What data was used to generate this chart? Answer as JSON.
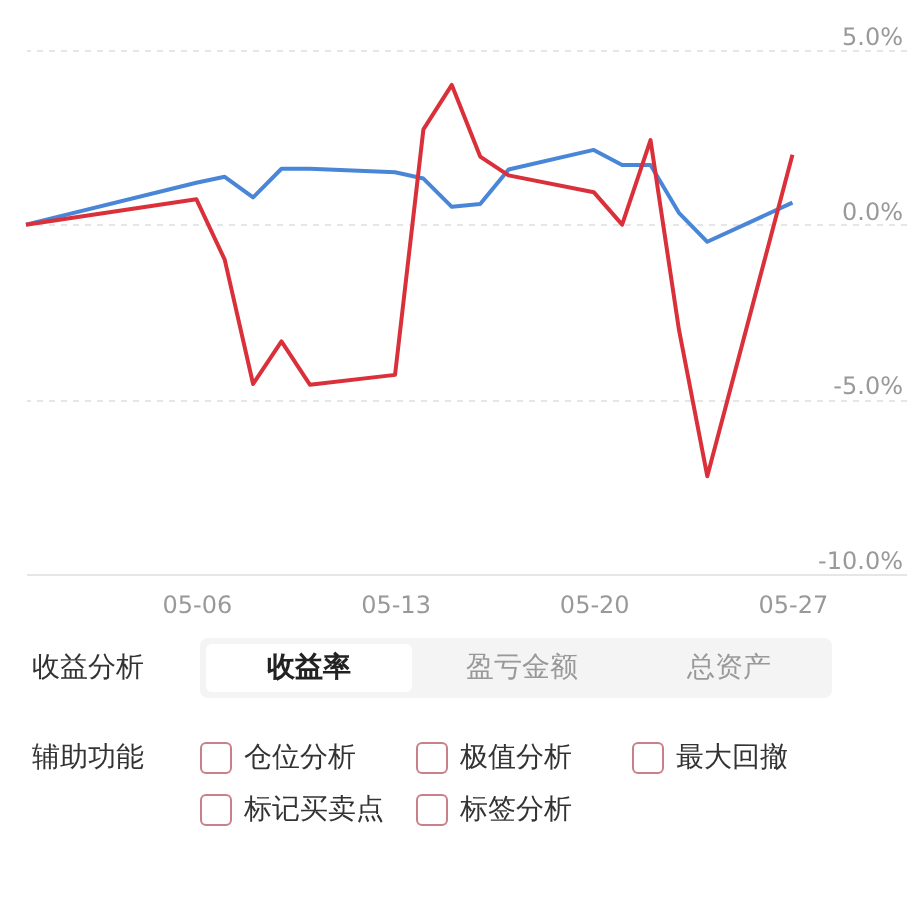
{
  "chart_data": [
    {
      "type": "line",
      "x": [
        "--04-30",
        "--05-06",
        "--05-07",
        "--05-08",
        "--05-09",
        "--05-10",
        "--05-13",
        "--05-14",
        "--05-15",
        "--05-16",
        "--05-17",
        "--05-20",
        "--05-21",
        "--05-22",
        "--05-23",
        "--05-24",
        "--05-27"
      ],
      "series": [
        {
          "color": "#4a86d8",
          "values": [
            0,
            1.2,
            1.37,
            0.78,
            1.6,
            1.6,
            1.5,
            1.32,
            0.51,
            0.59,
            1.58,
            2.14,
            1.71,
            1.71,
            0.34,
            -0.49,
            0.63
          ]
        },
        {
          "color": "#d9303a",
          "values": [
            0,
            0.73,
            -1.0,
            -4.56,
            -3.34,
            -4.58,
            -4.3,
            2.73,
            4.0,
            1.95,
            1.41,
            0.93,
            0.0,
            2.42,
            -3.0,
            -7.2,
            2.0
          ]
        }
      ],
      "xlim": [
        "--04-30",
        "--05-31"
      ],
      "xticks": [
        {
          "value": "--05-06",
          "label": "05-06"
        },
        {
          "value": "--05-13",
          "label": "05-13"
        },
        {
          "value": "--05-20",
          "label": "05-20"
        },
        {
          "value": "--05-27",
          "label": "05-27"
        }
      ],
      "ylim": [
        -10,
        5
      ],
      "yticks": [
        {
          "value": -10,
          "label": "-10.0%"
        },
        {
          "value": -5,
          "label": "-5.0%"
        },
        {
          "value": 0,
          "label": "0.0%"
        },
        {
          "value": 5,
          "label": "5.0%"
        }
      ],
      "grid": "y",
      "legend": false
    },
    {
      "type": "other",
      "annotations": [
        "收益分析",
        "收益率",
        "盈亏金额",
        "总资产",
        "辅助功能",
        "仓位分析",
        "极值分析",
        "最大回撤",
        "标记买卖点",
        "标签分析"
      ]
    }
  ]
}
